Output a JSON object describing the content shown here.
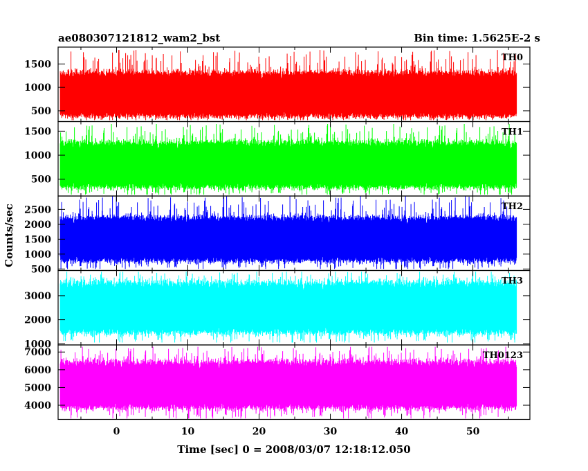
{
  "header": {
    "title": "ae080307121812_wam2_bst",
    "bin_time": "Bin time: 1.5625E-2 s"
  },
  "chart_data": {
    "type": "line",
    "xlabel": "Time [sec] 0 = 2008/03/07 12:18:12.050",
    "ylabel": "Counts/sec",
    "xlim": [
      -8.2,
      58
    ],
    "x_ticks": [
      0,
      10,
      20,
      30,
      40,
      50
    ],
    "x_tick_labels": [
      "0",
      "10",
      "20",
      "30",
      "40",
      "50"
    ],
    "data_range_x": [
      -7.9,
      56.1
    ],
    "grid": false,
    "panels": [
      {
        "name": "TH0",
        "color": "#ff0000",
        "ylim": [
          270,
          1860
        ],
        "ticks": [
          500,
          1000,
          1500
        ],
        "tick_labels": [
          "500",
          "1000",
          "1500"
        ],
        "typical_range": [
          400,
          1300
        ],
        "data_range": [
          300,
          1800
        ]
      },
      {
        "name": "TH1",
        "color": "#00ff00",
        "ylim": [
          150,
          1700
        ],
        "ticks": [
          500,
          1000,
          1500
        ],
        "tick_labels": [
          "500",
          "1000",
          "1500"
        ],
        "typical_range": [
          350,
          1250
        ],
        "data_range": [
          180,
          1650
        ]
      },
      {
        "name": "TH2",
        "color": "#0000ff",
        "ylim": [
          450,
          2950
        ],
        "ticks": [
          500,
          1000,
          1500,
          2000,
          2500
        ],
        "tick_labels": [
          "500",
          "1000",
          "1500",
          "2000",
          "2500"
        ],
        "typical_range": [
          800,
          2200
        ],
        "data_range": [
          500,
          2950
        ]
      },
      {
        "name": "TH3",
        "color": "#00ffff",
        "ylim": [
          950,
          4050
        ],
        "ticks": [
          1000,
          2000,
          3000
        ],
        "tick_labels": [
          "1000",
          "2000",
          "3000"
        ],
        "typical_range": [
          1500,
          3500
        ],
        "data_range": [
          1050,
          4000
        ]
      },
      {
        "name": "TH0123",
        "color": "#ff00ff",
        "ylim": [
          3200,
          7400
        ],
        "ticks": [
          4000,
          5000,
          6000,
          7000
        ],
        "tick_labels": [
          "4000",
          "5000",
          "6000",
          "7000"
        ],
        "typical_range": [
          3900,
          6400
        ],
        "data_range": [
          3250,
          7300
        ]
      }
    ]
  }
}
